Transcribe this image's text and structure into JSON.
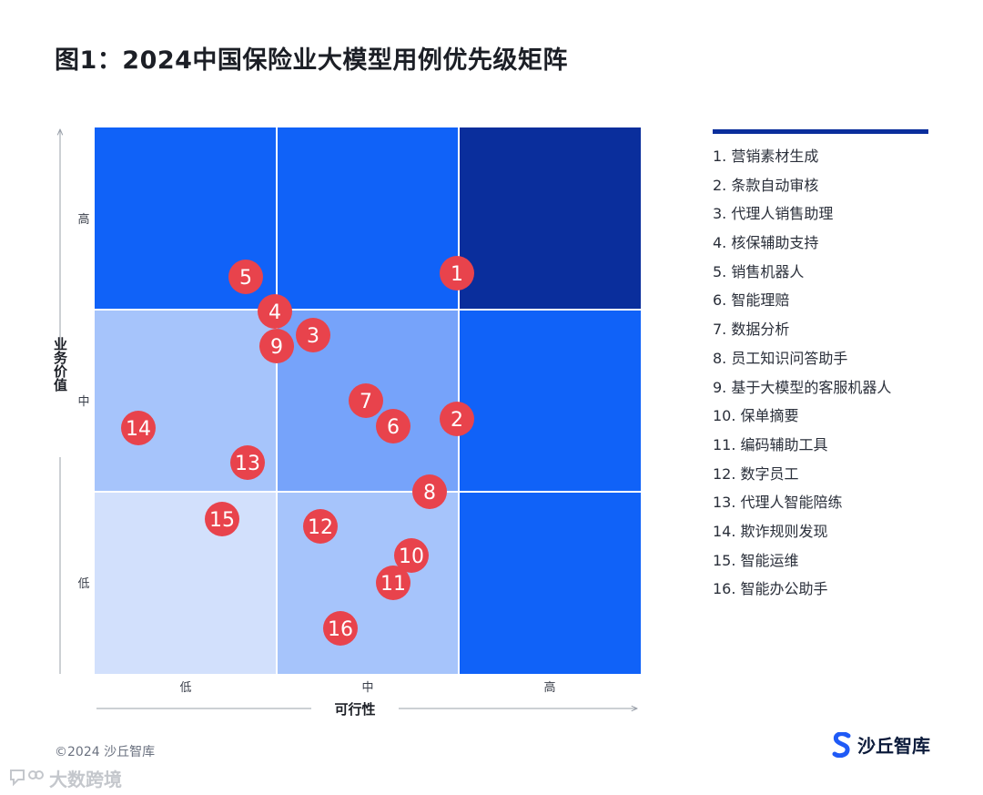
{
  "title": "图1：2024中国保险业大模型用例优先级矩阵",
  "copyright": "©2024 沙丘智库",
  "brand": {
    "name": "沙丘智库",
    "icon": "s-logo-icon"
  },
  "watermark": {
    "text": "大数跨境",
    "icon": "chat-bubble-icon"
  },
  "legend": [
    "1.  营销素材生成",
    "2.  条款自动审核",
    "3.  代理人销售助理",
    "4.  核保辅助支持",
    "5.  销售机器人",
    "6.  智能理赔",
    "7.  数据分析",
    "8.  员工知识问答助手",
    "9.  基于大模型的客服机器人",
    "10.  保单摘要",
    "11.  编码辅助工具",
    "12.  数字员工",
    "13.  代理人智能陪练",
    "14.  欺诈规则发现",
    "15.  智能运维",
    "16.  智能办公助手"
  ],
  "chart_data": {
    "type": "scatter",
    "title": "图1：2024中国保险业大模型用例优先级矩阵",
    "xlabel": "可行性",
    "ylabel": "业务价值",
    "xlim": [
      0,
      3
    ],
    "ylim": [
      0,
      3
    ],
    "x_ticks": [
      "低",
      "中",
      "高"
    ],
    "y_ticks": [
      "低",
      "中",
      "高"
    ],
    "grid": true,
    "legend_position": "right",
    "cells": [
      {
        "col": 0,
        "row": 0,
        "color": "#d2e0fc"
      },
      {
        "col": 1,
        "row": 0,
        "color": "#a6c4fb"
      },
      {
        "col": 2,
        "row": 0,
        "color": "#1062f8"
      },
      {
        "col": 0,
        "row": 1,
        "color": "#a6c4fb"
      },
      {
        "col": 1,
        "row": 1,
        "color": "#76a3fa"
      },
      {
        "col": 2,
        "row": 1,
        "color": "#1062f8"
      },
      {
        "col": 0,
        "row": 2,
        "color": "#1062f8"
      },
      {
        "col": 1,
        "row": 2,
        "color": "#1062f8"
      },
      {
        "col": 2,
        "row": 2,
        "color": "#0a2e9c"
      }
    ],
    "marker_color": "#e8434c",
    "points": [
      {
        "label": "1",
        "x": 1.99,
        "y": 2.2
      },
      {
        "label": "2",
        "x": 1.99,
        "y": 1.4
      },
      {
        "label": "3",
        "x": 1.2,
        "y": 1.86
      },
      {
        "label": "4",
        "x": 0.99,
        "y": 1.99
      },
      {
        "label": "5",
        "x": 0.83,
        "y": 2.18
      },
      {
        "label": "6",
        "x": 1.64,
        "y": 1.36
      },
      {
        "label": "7",
        "x": 1.49,
        "y": 1.5
      },
      {
        "label": "8",
        "x": 1.84,
        "y": 1.0
      },
      {
        "label": "9",
        "x": 1.0,
        "y": 1.8
      },
      {
        "label": "10",
        "x": 1.74,
        "y": 0.65
      },
      {
        "label": "11",
        "x": 1.64,
        "y": 0.5
      },
      {
        "label": "12",
        "x": 1.24,
        "y": 0.81
      },
      {
        "label": "13",
        "x": 0.84,
        "y": 1.16
      },
      {
        "label": "14",
        "x": 0.24,
        "y": 1.35
      },
      {
        "label": "15",
        "x": 0.7,
        "y": 0.85
      },
      {
        "label": "16",
        "x": 1.35,
        "y": 0.25
      }
    ]
  }
}
